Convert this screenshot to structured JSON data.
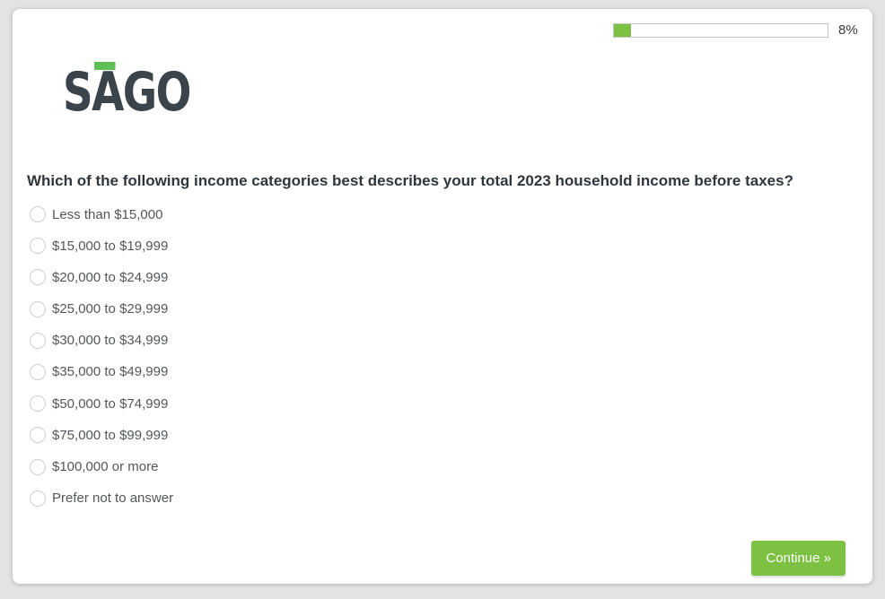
{
  "progress": {
    "percent": 8,
    "label": "8%"
  },
  "logo": {
    "s": "S",
    "a": "A",
    "go": "GO"
  },
  "question": {
    "text": "Which of the following income categories best describes your total 2023 household income before taxes?"
  },
  "options": [
    "Less than $15,000",
    "$15,000 to $19,999",
    "$20,000 to $24,999",
    "$25,000 to $29,999",
    "$30,000 to $34,999",
    "$35,000 to $49,999",
    "$50,000 to $74,999",
    "$75,000 to $99,999",
    "$100,000 or more",
    "Prefer not to answer"
  ],
  "continue_button": {
    "label": "Continue »"
  },
  "colors": {
    "accent_green": "#7cc142",
    "logo_dash_green": "#5ec054",
    "logo_text": "#3b434b",
    "page_background": "#e3e3e3"
  }
}
